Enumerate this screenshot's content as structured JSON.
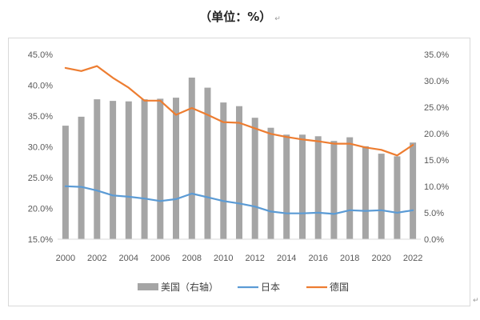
{
  "caption": {
    "title": "（单位：%）",
    "return_mark": "↵"
  },
  "corner_mark": "↵",
  "chart_data": {
    "type": "bar",
    "title": "（单位：%）",
    "x": [
      2000,
      2001,
      2002,
      2003,
      2004,
      2005,
      2006,
      2007,
      2008,
      2009,
      2010,
      2011,
      2012,
      2013,
      2014,
      2015,
      2016,
      2017,
      2018,
      2019,
      2020,
      2021,
      2022
    ],
    "x_tick_labels": [
      "2000",
      "2002",
      "2004",
      "2006",
      "2008",
      "2010",
      "2012",
      "2014",
      "2016",
      "2018",
      "2020",
      "2022"
    ],
    "left_axis": {
      "ylim": [
        15,
        45
      ],
      "tick_labels": [
        "15.0%",
        "20.0%",
        "25.0%",
        "30.0%",
        "35.0%",
        "40.0%",
        "45.0%"
      ]
    },
    "right_axis": {
      "ylim": [
        0,
        35
      ],
      "tick_labels": [
        "0.0%",
        "5.0%",
        "10.0%",
        "15.0%",
        "20.0%",
        "25.0%",
        "30.0%",
        "35.0%"
      ]
    },
    "grid": "none",
    "legend_position": "bottom",
    "series": [
      {
        "name": "美国（右轴）",
        "type": "bar",
        "axis": "right",
        "color": "#a5a5a5",
        "values": [
          21.5,
          23.2,
          26.5,
          26.2,
          26.1,
          26.5,
          26.6,
          26.8,
          30.6,
          28.7,
          25.9,
          25.2,
          23.0,
          21.1,
          19.8,
          19.8,
          19.5,
          18.6,
          19.3,
          17.6,
          16.2,
          15.7,
          18.3
        ]
      },
      {
        "name": "日本",
        "type": "line",
        "axis": "left",
        "color": "#5b9bd5",
        "values": [
          23.6,
          23.5,
          22.9,
          22.1,
          21.9,
          21.6,
          21.2,
          21.5,
          22.4,
          21.8,
          21.2,
          20.8,
          20.3,
          19.5,
          19.2,
          19.2,
          19.3,
          19.1,
          19.7,
          19.6,
          19.7,
          19.3,
          19.7
        ]
      },
      {
        "name": "德国",
        "type": "line",
        "axis": "left",
        "color": "#ed7d31",
        "values": [
          42.8,
          42.3,
          43.1,
          41.2,
          39.6,
          37.5,
          37.5,
          35.2,
          36.3,
          35.2,
          34.0,
          33.9,
          33.0,
          32.1,
          31.6,
          31.2,
          30.9,
          30.5,
          30.5,
          29.9,
          29.5,
          28.6,
          30.3
        ]
      }
    ]
  }
}
